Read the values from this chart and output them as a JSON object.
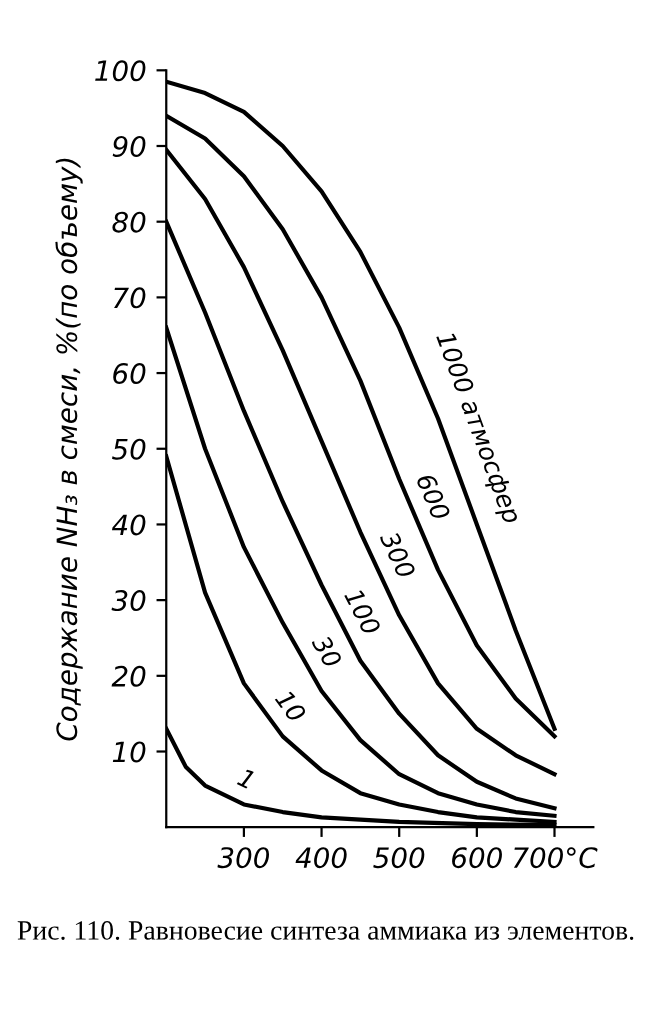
{
  "chart_data": {
    "type": "line",
    "ylabel": "Содержание NH₃ в смеси, %(по объему)",
    "xlim": [
      200,
      750
    ],
    "xticks": [
      300,
      400,
      500,
      600,
      {
        "value": 700,
        "label": "700°C"
      }
    ],
    "ylim": [
      0,
      100
    ],
    "yticks": [
      10,
      20,
      30,
      40,
      50,
      60,
      70,
      80,
      90,
      100
    ],
    "x": [
      200,
      250,
      300,
      350,
      400,
      450,
      500,
      550,
      600,
      650,
      700
    ],
    "series": [
      {
        "name": "1",
        "color": "#000000",
        "x": [
          200,
          225,
          250,
          300,
          350,
          400,
          500,
          600,
          700
        ],
        "values": [
          13,
          8,
          5.5,
          3,
          2,
          1.3,
          0.7,
          0.4,
          0.3
        ]
      },
      {
        "name": "10",
        "color": "#000000",
        "values": [
          49,
          31,
          19,
          12,
          7.5,
          4.5,
          3,
          2,
          1.3,
          1,
          0.7
        ]
      },
      {
        "name": "30",
        "color": "#000000",
        "values": [
          66,
          50,
          37,
          27,
          18,
          11.5,
          7,
          4.5,
          3,
          2,
          1.5
        ]
      },
      {
        "name": "100",
        "color": "#000000",
        "values": [
          80,
          68,
          55,
          43,
          32,
          22,
          15,
          9.5,
          6,
          3.8,
          2.5
        ]
      },
      {
        "name": "300",
        "color": "#000000",
        "values": [
          89.5,
          83,
          74,
          63,
          51,
          39,
          28,
          19,
          13,
          9.5,
          7
        ]
      },
      {
        "name": "600",
        "color": "#000000",
        "values": [
          94,
          91,
          86,
          79,
          70,
          59,
          46,
          34,
          24,
          17,
          12
        ]
      },
      {
        "name": "1000 атмосфер",
        "color": "#000000",
        "values": [
          98.5,
          97,
          94.5,
          90,
          84,
          76,
          66,
          54,
          40,
          26,
          13
        ]
      }
    ],
    "grid": false,
    "legend": false,
    "marker": "none",
    "line_style": "solid",
    "annotations": [
      "Рис. 110. Равновесие синтеза аммиака из элементов."
    ]
  }
}
